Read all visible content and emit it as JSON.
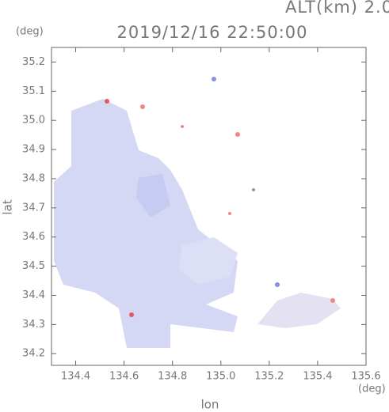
{
  "chart_data": {
    "type": "map",
    "title": "2019/12/16 22:50:00",
    "subtitle": "ALT(km) 2.0",
    "x_label": "lon",
    "y_label": "lat",
    "x_unit": "(deg)",
    "y_unit": "(deg)",
    "xlim": [
      134.3,
      135.6
    ],
    "ylim": [
      34.16,
      35.25
    ],
    "xticks": [
      134.4,
      134.6,
      134.8,
      {
        "value": 135.0,
        "label": "135.0"
      },
      135.2,
      135.4,
      135.6
    ],
    "yticks": [
      34.2,
      34.3,
      34.4,
      34.5,
      34.6,
      34.7,
      34.8,
      34.9,
      {
        "value": 35.0,
        "label": "35.0"
      },
      35.1,
      35.2
    ]
  }
}
